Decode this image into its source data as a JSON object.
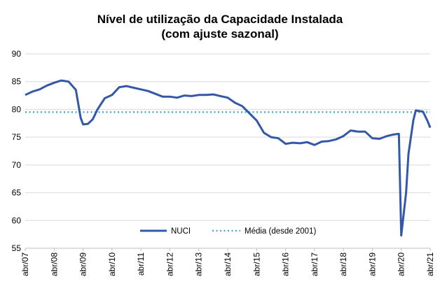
{
  "chart_data": {
    "type": "line",
    "title": "Nível de utilização da Capacidade Instalada",
    "subtitle": "(com ajuste sazonal)",
    "xlabel": "",
    "ylabel": "",
    "ylim": [
      55,
      90
    ],
    "y_ticks": [
      55,
      60,
      65,
      70,
      75,
      80,
      85,
      90
    ],
    "x_ticks": [
      "abr/07",
      "abr/08",
      "abr/09",
      "abr/10",
      "abr/11",
      "abr/12",
      "abr/13",
      "abr/14",
      "abr/15",
      "abr/16",
      "abr/17",
      "abr/18",
      "abr/19",
      "abr/20",
      "abr/21"
    ],
    "x_range": [
      "2007-04",
      "2021-04"
    ],
    "grid": "horizontal",
    "legend_position": "bottom-center",
    "series": [
      {
        "name": "NUCI",
        "color": "#3358A8",
        "style": "solid",
        "points": [
          [
            "2007-04",
            82.6
          ],
          [
            "2007-07",
            83.2
          ],
          [
            "2007-10",
            83.6
          ],
          [
            "2008-01",
            84.3
          ],
          [
            "2008-04",
            84.8
          ],
          [
            "2008-07",
            85.2
          ],
          [
            "2008-10",
            85.0
          ],
          [
            "2009-01",
            83.5
          ],
          [
            "2009-03",
            78.5
          ],
          [
            "2009-04",
            77.3
          ],
          [
            "2009-06",
            77.4
          ],
          [
            "2009-08",
            78.2
          ],
          [
            "2009-10",
            80.0
          ],
          [
            "2010-01",
            82.0
          ],
          [
            "2010-04",
            82.6
          ],
          [
            "2010-07",
            84.0
          ],
          [
            "2010-10",
            84.2
          ],
          [
            "2011-01",
            83.9
          ],
          [
            "2011-04",
            83.6
          ],
          [
            "2011-07",
            83.3
          ],
          [
            "2011-10",
            82.8
          ],
          [
            "2012-01",
            82.3
          ],
          [
            "2012-04",
            82.3
          ],
          [
            "2012-07",
            82.1
          ],
          [
            "2012-10",
            82.5
          ],
          [
            "2013-01",
            82.4
          ],
          [
            "2013-04",
            82.6
          ],
          [
            "2013-07",
            82.6
          ],
          [
            "2013-10",
            82.7
          ],
          [
            "2014-01",
            82.4
          ],
          [
            "2014-04",
            82.1
          ],
          [
            "2014-07",
            81.2
          ],
          [
            "2014-10",
            80.6
          ],
          [
            "2015-01",
            79.3
          ],
          [
            "2015-04",
            78.0
          ],
          [
            "2015-07",
            75.8
          ],
          [
            "2015-10",
            75.0
          ],
          [
            "2016-01",
            74.8
          ],
          [
            "2016-04",
            73.8
          ],
          [
            "2016-07",
            74.0
          ],
          [
            "2016-10",
            73.9
          ],
          [
            "2017-01",
            74.1
          ],
          [
            "2017-04",
            73.6
          ],
          [
            "2017-07",
            74.2
          ],
          [
            "2017-10",
            74.3
          ],
          [
            "2018-01",
            74.6
          ],
          [
            "2018-04",
            75.2
          ],
          [
            "2018-07",
            76.2
          ],
          [
            "2018-10",
            76.0
          ],
          [
            "2019-01",
            76.0
          ],
          [
            "2019-04",
            74.8
          ],
          [
            "2019-07",
            74.7
          ],
          [
            "2019-10",
            75.2
          ],
          [
            "2020-01",
            75.5
          ],
          [
            "2020-03",
            75.6
          ],
          [
            "2020-04",
            57.3
          ],
          [
            "2020-06",
            65.0
          ],
          [
            "2020-07",
            72.0
          ],
          [
            "2020-09",
            78.0
          ],
          [
            "2020-10",
            79.8
          ],
          [
            "2021-01",
            79.6
          ],
          [
            "2021-03",
            77.8
          ],
          [
            "2021-04",
            76.7
          ]
        ]
      },
      {
        "name": "Média (desde 2001)",
        "color": "#4BACC6",
        "style": "dotted",
        "constant": 79.5
      }
    ]
  }
}
